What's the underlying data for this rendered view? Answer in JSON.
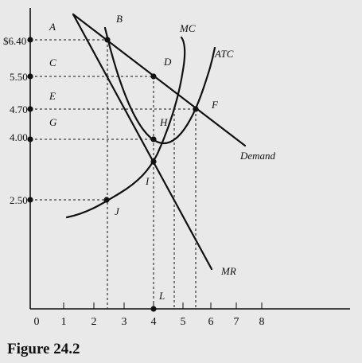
{
  "figure": {
    "caption": "Figure 24.2"
  },
  "axes": {
    "x_ticks": [
      "0",
      "1",
      "2",
      "3",
      "4",
      "5",
      "6",
      "7",
      "8"
    ],
    "y_ticks": [
      {
        "value": 6.4,
        "label": "$6.40"
      },
      {
        "value": 5.5,
        "label": "5.50"
      },
      {
        "value": 4.7,
        "label": "4.70"
      },
      {
        "value": 4.0,
        "label": "4.00"
      },
      {
        "value": 2.5,
        "label": "2.50"
      }
    ]
  },
  "curves": {
    "demand": {
      "label": "Demand"
    },
    "mr": {
      "label": "MR"
    },
    "mc": {
      "label": "MC"
    },
    "atc": {
      "label": "ATC"
    }
  },
  "points": {
    "A": "A",
    "B": "B",
    "C": "C",
    "D": "D",
    "E": "E",
    "F": "F",
    "G": "G",
    "H": "H",
    "I": "I",
    "J": "J",
    "L": "L"
  },
  "colors": {
    "background": "#e9e9e9",
    "ink": "#111111"
  }
}
